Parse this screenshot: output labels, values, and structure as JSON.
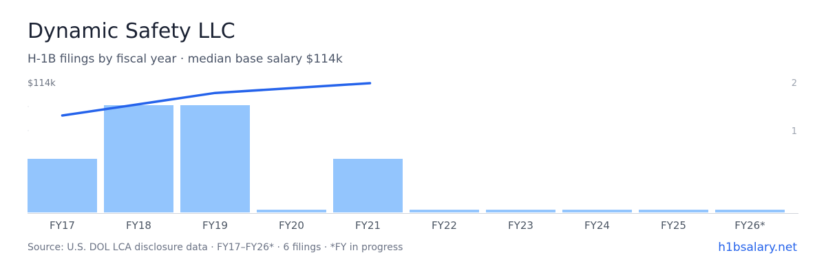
{
  "header": {
    "title": "Dynamic Safety LLC",
    "subtitle": "H-1B filings by fiscal year · median base salary $114k"
  },
  "footer": {
    "source": "Source: U.S. DOL LCA disclosure data · FY17–FY26* · 6 filings · *FY in progress",
    "site": "h1bsalary.net"
  },
  "chart_data": {
    "type": "bar",
    "categories": [
      "FY17",
      "FY18",
      "FY19",
      "FY20",
      "FY21",
      "FY22",
      "FY23",
      "FY24",
      "FY25",
      "FY26*"
    ],
    "series": [
      {
        "type": "bar",
        "axis": "right",
        "values": [
          1,
          2,
          2,
          0,
          1,
          0,
          0,
          0,
          0,
          0
        ]
      },
      {
        "type": "line",
        "axis": "left",
        "points": [
          {
            "category": "FY17",
            "value": 110
          },
          {
            "category": "FY18",
            "value": 111.5
          },
          {
            "category": "FY19",
            "value": 113
          },
          {
            "category": "FY21",
            "value": 114.3
          }
        ]
      }
    ],
    "left_axis": {
      "top_label": "$114k"
    },
    "right_axis": {
      "ticks": [
        "2",
        "1"
      ],
      "max": 2
    },
    "colors": {
      "bar": "#93c5fd",
      "line": "#2563eb",
      "baseline_stub": "#dbeafe"
    }
  }
}
